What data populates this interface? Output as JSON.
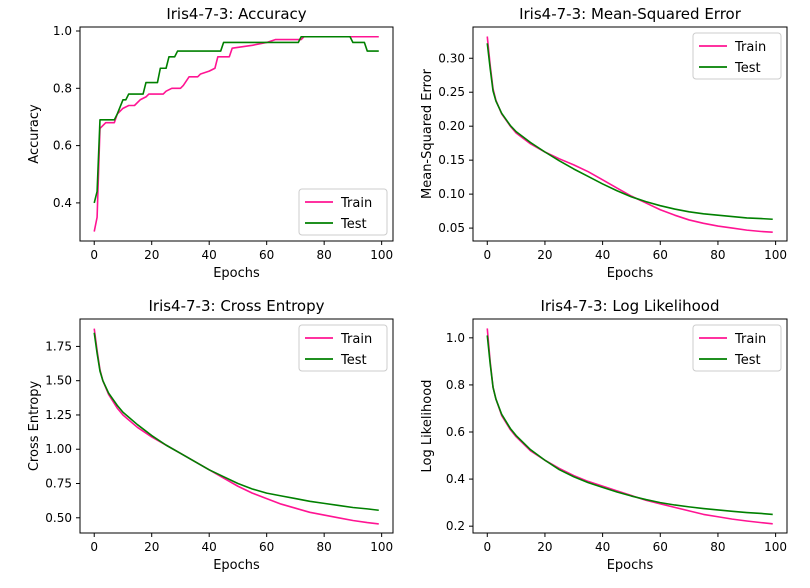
{
  "colors": {
    "train": "#ff1493",
    "test": "#008000"
  },
  "chart_data": [
    {
      "type": "line",
      "title": "Iris4-7-3: Accuracy",
      "xlabel": "Epochs",
      "ylabel": "Accuracy",
      "xlim": [
        -4.95,
        103.95
      ],
      "ylim": [
        0.267,
        1.014
      ],
      "xticks": [
        0,
        20,
        40,
        60,
        80,
        100
      ],
      "yticks": [
        0.4,
        0.6,
        0.8,
        1.0
      ],
      "ytick_labels": [
        "0.4",
        "0.6",
        "0.8",
        "1.0"
      ],
      "legend": "lower-right",
      "grid": false,
      "series": [
        {
          "name": "Train",
          "color": "#ff1493",
          "points": [
            [
              0,
              0.3
            ],
            [
              1,
              0.35
            ],
            [
              2,
              0.66
            ],
            [
              3,
              0.67
            ],
            [
              4,
              0.68
            ],
            [
              7,
              0.68
            ],
            [
              8,
              0.71
            ],
            [
              10,
              0.73
            ],
            [
              12,
              0.74
            ],
            [
              14,
              0.74
            ],
            [
              16,
              0.76
            ],
            [
              18,
              0.77
            ],
            [
              19,
              0.78
            ],
            [
              24,
              0.78
            ],
            [
              25,
              0.79
            ],
            [
              27,
              0.8
            ],
            [
              30,
              0.8
            ],
            [
              31,
              0.81
            ],
            [
              33,
              0.84
            ],
            [
              36,
              0.84
            ],
            [
              37,
              0.85
            ],
            [
              40,
              0.86
            ],
            [
              42,
              0.87
            ],
            [
              43,
              0.91
            ],
            [
              47,
              0.91
            ],
            [
              48,
              0.94
            ],
            [
              55,
              0.95
            ],
            [
              60,
              0.96
            ],
            [
              63,
              0.97
            ],
            [
              72,
              0.97
            ],
            [
              73,
              0.98
            ],
            [
              99,
              0.98
            ]
          ]
        },
        {
          "name": "Test",
          "color": "#008000",
          "points": [
            [
              0,
              0.4
            ],
            [
              1,
              0.44
            ],
            [
              2,
              0.69
            ],
            [
              7,
              0.69
            ],
            [
              8,
              0.71
            ],
            [
              10,
              0.76
            ],
            [
              11,
              0.76
            ],
            [
              12,
              0.78
            ],
            [
              17,
              0.78
            ],
            [
              18,
              0.82
            ],
            [
              22,
              0.82
            ],
            [
              23,
              0.87
            ],
            [
              25,
              0.87
            ],
            [
              26,
              0.91
            ],
            [
              28,
              0.91
            ],
            [
              29,
              0.93
            ],
            [
              44,
              0.93
            ],
            [
              45,
              0.96
            ],
            [
              71,
              0.96
            ],
            [
              72,
              0.98
            ],
            [
              89,
              0.98
            ],
            [
              90,
              0.96
            ],
            [
              94,
              0.96
            ],
            [
              95,
              0.93
            ],
            [
              99,
              0.93
            ]
          ]
        }
      ]
    },
    {
      "type": "line",
      "title": "Iris4-7-3: Mean-Squared Error",
      "xlabel": "Epochs",
      "ylabel": "Mean-Squared Error",
      "xlim": [
        -4.95,
        103.95
      ],
      "ylim": [
        0.031,
        0.346
      ],
      "xticks": [
        0,
        20,
        40,
        60,
        80,
        100
      ],
      "yticks": [
        0.05,
        0.1,
        0.15,
        0.2,
        0.25,
        0.3
      ],
      "ytick_labels": [
        "0.05",
        "0.10",
        "0.15",
        "0.20",
        "0.25",
        "0.30"
      ],
      "legend": "upper-right",
      "grid": false,
      "series": [
        {
          "name": "Train",
          "color": "#ff1493",
          "points": [
            [
              0,
              0.332
            ],
            [
              1,
              0.29
            ],
            [
              2,
              0.255
            ],
            [
              3,
              0.238
            ],
            [
              5,
              0.218
            ],
            [
              8,
              0.2
            ],
            [
              10,
              0.19
            ],
            [
              15,
              0.174
            ],
            [
              20,
              0.162
            ],
            [
              25,
              0.152
            ],
            [
              30,
              0.143
            ],
            [
              35,
              0.133
            ],
            [
              40,
              0.121
            ],
            [
              45,
              0.109
            ],
            [
              50,
              0.097
            ],
            [
              55,
              0.087
            ],
            [
              60,
              0.077
            ],
            [
              65,
              0.069
            ],
            [
              70,
              0.062
            ],
            [
              75,
              0.057
            ],
            [
              80,
              0.053
            ],
            [
              85,
              0.05
            ],
            [
              90,
              0.047
            ],
            [
              95,
              0.045
            ],
            [
              99,
              0.044
            ]
          ]
        },
        {
          "name": "Test",
          "color": "#008000",
          "points": [
            [
              0,
              0.322
            ],
            [
              1,
              0.285
            ],
            [
              2,
              0.252
            ],
            [
              3,
              0.237
            ],
            [
              5,
              0.219
            ],
            [
              8,
              0.201
            ],
            [
              10,
              0.192
            ],
            [
              15,
              0.176
            ],
            [
              20,
              0.162
            ],
            [
              25,
              0.149
            ],
            [
              30,
              0.137
            ],
            [
              35,
              0.126
            ],
            [
              40,
              0.115
            ],
            [
              45,
              0.105
            ],
            [
              50,
              0.096
            ],
            [
              55,
              0.089
            ],
            [
              60,
              0.083
            ],
            [
              65,
              0.078
            ],
            [
              70,
              0.074
            ],
            [
              75,
              0.071
            ],
            [
              80,
              0.069
            ],
            [
              85,
              0.067
            ],
            [
              90,
              0.065
            ],
            [
              95,
              0.064
            ],
            [
              99,
              0.063
            ]
          ]
        }
      ]
    },
    {
      "type": "line",
      "title": "Iris4-7-3: Cross Entropy",
      "xlabel": "Epochs",
      "ylabel": "Cross Entropy",
      "xlim": [
        -4.95,
        103.95
      ],
      "ylim": [
        0.389,
        1.95
      ],
      "xticks": [
        0,
        20,
        40,
        60,
        80,
        100
      ],
      "yticks": [
        0.5,
        0.75,
        1.0,
        1.25,
        1.5,
        1.75
      ],
      "ytick_labels": [
        "0.50",
        "0.75",
        "1.00",
        "1.25",
        "1.50",
        "1.75"
      ],
      "legend": "upper-right",
      "grid": false,
      "series": [
        {
          "name": "Train",
          "color": "#ff1493",
          "points": [
            [
              0,
              1.88
            ],
            [
              1,
              1.72
            ],
            [
              2,
              1.58
            ],
            [
              3,
              1.5
            ],
            [
              5,
              1.4
            ],
            [
              8,
              1.3
            ],
            [
              10,
              1.25
            ],
            [
              15,
              1.16
            ],
            [
              20,
              1.09
            ],
            [
              25,
              1.03
            ],
            [
              30,
              0.97
            ],
            [
              35,
              0.91
            ],
            [
              40,
              0.85
            ],
            [
              45,
              0.79
            ],
            [
              50,
              0.73
            ],
            [
              55,
              0.68
            ],
            [
              60,
              0.64
            ],
            [
              65,
              0.6
            ],
            [
              70,
              0.57
            ],
            [
              75,
              0.54
            ],
            [
              80,
              0.52
            ],
            [
              85,
              0.5
            ],
            [
              90,
              0.48
            ],
            [
              95,
              0.465
            ],
            [
              99,
              0.455
            ]
          ]
        },
        {
          "name": "Test",
          "color": "#008000",
          "points": [
            [
              0,
              1.85
            ],
            [
              1,
              1.7
            ],
            [
              2,
              1.57
            ],
            [
              3,
              1.5
            ],
            [
              5,
              1.41
            ],
            [
              8,
              1.32
            ],
            [
              10,
              1.27
            ],
            [
              15,
              1.18
            ],
            [
              20,
              1.1
            ],
            [
              25,
              1.03
            ],
            [
              30,
              0.97
            ],
            [
              35,
              0.91
            ],
            [
              40,
              0.85
            ],
            [
              45,
              0.8
            ],
            [
              50,
              0.75
            ],
            [
              55,
              0.71
            ],
            [
              60,
              0.68
            ],
            [
              65,
              0.66
            ],
            [
              70,
              0.64
            ],
            [
              75,
              0.62
            ],
            [
              80,
              0.605
            ],
            [
              85,
              0.59
            ],
            [
              90,
              0.575
            ],
            [
              95,
              0.565
            ],
            [
              99,
              0.555
            ]
          ]
        }
      ]
    },
    {
      "type": "line",
      "title": "Iris4-7-3: Log Likelihood",
      "xlabel": "Epochs",
      "ylabel": "Log Likelihood",
      "xlim": [
        -4.95,
        103.95
      ],
      "ylim": [
        0.171,
        1.08
      ],
      "xticks": [
        0,
        20,
        40,
        60,
        80,
        100
      ],
      "yticks": [
        0.2,
        0.4,
        0.6,
        0.8,
        1.0
      ],
      "ytick_labels": [
        "0.2",
        "0.4",
        "0.6",
        "0.8",
        "1.0"
      ],
      "legend": "upper-right",
      "grid": false,
      "series": [
        {
          "name": "Train",
          "color": "#ff1493",
          "points": [
            [
              0,
              1.04
            ],
            [
              1,
              0.9
            ],
            [
              2,
              0.79
            ],
            [
              3,
              0.74
            ],
            [
              5,
              0.67
            ],
            [
              8,
              0.61
            ],
            [
              10,
              0.58
            ],
            [
              15,
              0.52
            ],
            [
              20,
              0.48
            ],
            [
              25,
              0.445
            ],
            [
              30,
              0.415
            ],
            [
              35,
              0.39
            ],
            [
              40,
              0.37
            ],
            [
              45,
              0.35
            ],
            [
              50,
              0.33
            ],
            [
              55,
              0.31
            ],
            [
              60,
              0.295
            ],
            [
              65,
              0.28
            ],
            [
              70,
              0.265
            ],
            [
              75,
              0.25
            ],
            [
              80,
              0.24
            ],
            [
              85,
              0.23
            ],
            [
              90,
              0.222
            ],
            [
              95,
              0.215
            ],
            [
              99,
              0.21
            ]
          ]
        },
        {
          "name": "Test",
          "color": "#008000",
          "points": [
            [
              0,
              1.01
            ],
            [
              1,
              0.89
            ],
            [
              2,
              0.79
            ],
            [
              3,
              0.74
            ],
            [
              5,
              0.675
            ],
            [
              8,
              0.615
            ],
            [
              10,
              0.585
            ],
            [
              15,
              0.525
            ],
            [
              20,
              0.48
            ],
            [
              25,
              0.44
            ],
            [
              30,
              0.41
            ],
            [
              35,
              0.385
            ],
            [
              40,
              0.365
            ],
            [
              45,
              0.345
            ],
            [
              50,
              0.328
            ],
            [
              55,
              0.313
            ],
            [
              60,
              0.3
            ],
            [
              65,
              0.29
            ],
            [
              70,
              0.282
            ],
            [
              75,
              0.275
            ],
            [
              80,
              0.269
            ],
            [
              85,
              0.263
            ],
            [
              90,
              0.258
            ],
            [
              95,
              0.254
            ],
            [
              99,
              0.25
            ]
          ]
        }
      ]
    }
  ]
}
